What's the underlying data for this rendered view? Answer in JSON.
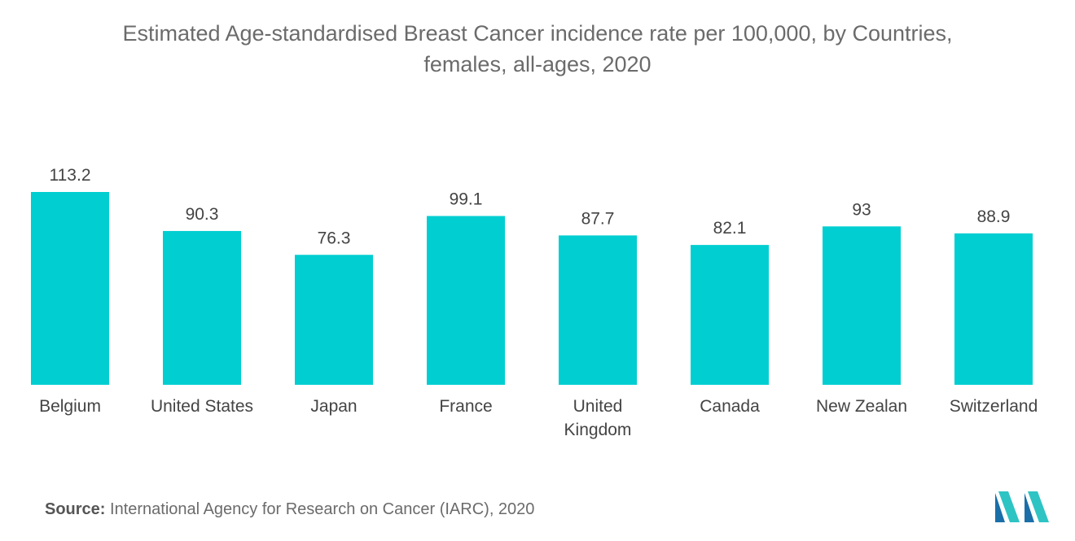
{
  "header": {
    "title_line1": "Estimated Age-standardised Breast Cancer incidence rate per 100,000, by Countries,",
    "title_line2": "females, all-ages, 2020"
  },
  "chart_data": {
    "type": "bar",
    "title": "Estimated Age-standardised Breast Cancer incidence rate per 100,000, by Countries, females, all-ages, 2020",
    "categories": [
      "Belgium",
      "United States",
      "Japan",
      "France",
      "United Kingdom",
      "Canada",
      "New Zealan",
      "Switzerland"
    ],
    "category_lines": [
      [
        "Belgium"
      ],
      [
        "United States"
      ],
      [
        "Japan"
      ],
      [
        "France"
      ],
      [
        "United",
        "Kingdom"
      ],
      [
        "Canada"
      ],
      [
        "New Zealan"
      ],
      [
        "Switzerland"
      ]
    ],
    "values": [
      113.2,
      90.3,
      76.3,
      99.1,
      87.7,
      82.1,
      93,
      88.9
    ],
    "value_labels": [
      "113.2",
      "90.3",
      "76.3",
      "99.1",
      "87.7",
      "82.1",
      "93",
      "88.9"
    ],
    "xlabel": "",
    "ylabel": "",
    "ylim": [
      0,
      113.2
    ],
    "grid": false,
    "legend": "none",
    "bar_color": "#00CED1"
  },
  "footer": {
    "source_label": "Source:",
    "source_text": "International Agency for Research on Cancer (IARC), 2020"
  },
  "logo": {
    "icon": "mordor-intelligence-logo-icon",
    "colors": [
      "#1a6fa8",
      "#2ec4c4"
    ]
  }
}
